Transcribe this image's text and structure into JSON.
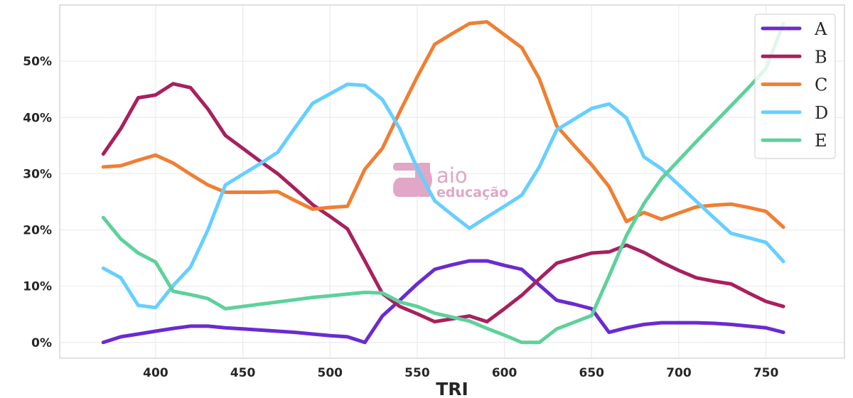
{
  "chart_data": {
    "type": "line",
    "xlabel": "TRI",
    "ylabel": "",
    "xlim": [
      345,
      795
    ],
    "ylim": [
      -2.8,
      60
    ],
    "x_ticks": [
      400,
      450,
      500,
      550,
      600,
      650,
      700,
      750
    ],
    "y_ticks": [
      0,
      10,
      20,
      30,
      40,
      50
    ],
    "y_tick_suffix": "%",
    "grid": true,
    "legend_position": "top-right",
    "x": [
      370,
      380,
      390,
      400,
      410,
      420,
      430,
      440,
      450,
      460,
      470,
      480,
      490,
      500,
      510,
      520,
      530,
      540,
      550,
      560,
      570,
      580,
      590,
      600,
      610,
      620,
      630,
      640,
      650,
      660,
      670,
      680,
      690,
      700,
      710,
      720,
      730,
      740,
      750,
      760
    ],
    "series": [
      {
        "name": "A",
        "color": "#6a2bd0",
        "values": [
          0,
          1,
          1.5,
          2,
          2.5,
          2.9,
          2.9,
          2.6,
          2.4,
          2.2,
          2,
          1.8,
          1.5,
          1.2,
          1,
          0,
          4.7,
          7.5,
          10.4,
          13,
          13.8,
          14.5,
          14.5,
          13.7,
          13,
          10.2,
          7.5,
          6.8,
          6,
          1.8,
          2.6,
          3.2,
          3.5,
          3.5,
          3.5,
          3.4,
          3.2,
          2.9,
          2.6,
          1.8
        ]
      },
      {
        "name": "B",
        "color": "#a8205e",
        "values": [
          33.5,
          38,
          43.5,
          44,
          46,
          45.3,
          41.5,
          36.8,
          34.5,
          32.2,
          30,
          27.3,
          24.5,
          22.4,
          20.2,
          14.5,
          8.7,
          6.4,
          5.1,
          3.7,
          4.2,
          4.7,
          3.7,
          6,
          8.4,
          11.3,
          14.1,
          15,
          15.9,
          16.1,
          17.3,
          16,
          14.3,
          12.8,
          11.5,
          10.9,
          10.4,
          8.8,
          7.3,
          6.4
        ]
      },
      {
        "name": "C",
        "color": "#ef7f33",
        "values": [
          31.2,
          31.4,
          32.4,
          33.3,
          31.9,
          29.9,
          28,
          26.7,
          26.7,
          26.7,
          26.8,
          25.2,
          23.7,
          24,
          24.2,
          30.8,
          34.5,
          41,
          47.2,
          53,
          54.9,
          56.7,
          57,
          54.7,
          52.4,
          46.9,
          38.5,
          35,
          31.6,
          27.7,
          21.5,
          23.1,
          21.9,
          23,
          24.1,
          24.4,
          24.6,
          24,
          23.3,
          20.5
        ]
      },
      {
        "name": "D",
        "color": "#66cfff",
        "values": [
          13.2,
          11.5,
          6.6,
          6.2,
          10.1,
          13.4,
          20,
          28,
          29.9,
          31.8,
          33.8,
          38.2,
          42.5,
          44.2,
          45.9,
          45.7,
          43.2,
          38,
          31,
          25.2,
          22.7,
          20.3,
          22.3,
          24.2,
          26.2,
          31.2,
          37.8,
          39.7,
          41.6,
          42.4,
          39.9,
          33,
          30.9,
          28,
          25.1,
          22.2,
          19.4,
          18.6,
          17.8,
          14.4
        ]
      },
      {
        "name": "E",
        "color": "#5ed19b",
        "values": [
          22.2,
          18.4,
          15.9,
          14.3,
          9.1,
          8.5,
          7.8,
          6,
          6.4,
          6.8,
          7.2,
          7.6,
          8,
          8.3,
          8.6,
          8.9,
          8.8,
          7.2,
          6.4,
          5.2,
          4.5,
          3.8,
          2.5,
          1.3,
          0,
          0,
          2.4,
          3.6,
          4.8,
          11.8,
          19,
          24.7,
          29.1,
          32.4,
          35.7,
          38.9,
          42.1,
          45.3,
          48.7,
          56.7
        ]
      }
    ]
  },
  "watermark": {
    "line1": "aio",
    "line2": "educação",
    "color": "#dfa3c4"
  },
  "colors": {
    "grid": "#ebebeb",
    "frame": "#cccccc",
    "text": "#262626",
    "background": "#ffffff"
  }
}
